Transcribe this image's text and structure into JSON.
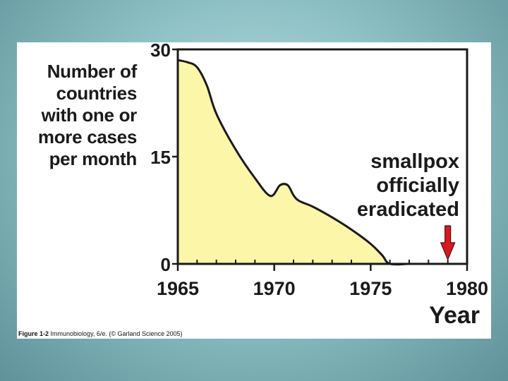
{
  "chart_data": {
    "type": "area",
    "ylabel_lines": [
      "Number of",
      "countries",
      "with one or",
      "more cases",
      "per month"
    ],
    "xlabel": "Year",
    "x": [
      1965,
      1965.5,
      1966,
      1966.5,
      1967,
      1968,
      1969,
      1969.8,
      1970.3,
      1970.7,
      1971,
      1971.3,
      1972,
      1973,
      1974,
      1975,
      1975.6,
      1976,
      1977,
      1978,
      1979,
      1980
    ],
    "y": [
      28.5,
      28.2,
      27.5,
      25.0,
      21.0,
      16.0,
      12.0,
      9.5,
      11.0,
      11.0,
      9.6,
      8.8,
      8.0,
      6.5,
      4.8,
      2.8,
      1.2,
      0,
      0,
      0,
      0,
      0
    ],
    "xlim": [
      1965,
      1980
    ],
    "ylim": [
      0,
      30
    ],
    "yticks": [
      "0",
      "15",
      "30"
    ],
    "xticks": [
      "1965",
      "1970",
      "1975",
      "1980"
    ],
    "fill_color": "#fbf6a8",
    "line_color": "#1a1a1a",
    "annotation": {
      "lines": [
        "smallpox",
        "officially",
        "eradicated"
      ],
      "x": 1979,
      "arrow_color": "#d7191f"
    }
  },
  "caption": {
    "figure_label": "Figure 1-2",
    "text": "Immunobiology, 6/e. (© Garland Science 2005)"
  }
}
